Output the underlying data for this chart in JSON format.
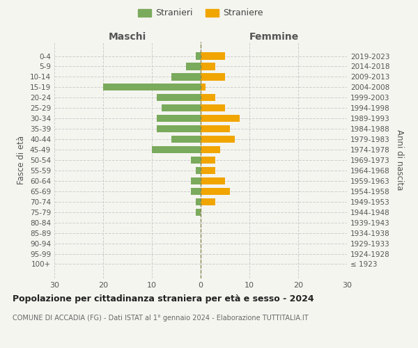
{
  "age_groups": [
    "100+",
    "95-99",
    "90-94",
    "85-89",
    "80-84",
    "75-79",
    "70-74",
    "65-69",
    "60-64",
    "55-59",
    "50-54",
    "45-49",
    "40-44",
    "35-39",
    "30-34",
    "25-29",
    "20-24",
    "15-19",
    "10-14",
    "5-9",
    "0-4"
  ],
  "birth_years": [
    "≤ 1923",
    "1924-1928",
    "1929-1933",
    "1934-1938",
    "1939-1943",
    "1944-1948",
    "1949-1953",
    "1954-1958",
    "1959-1963",
    "1964-1968",
    "1969-1973",
    "1974-1978",
    "1979-1983",
    "1984-1988",
    "1989-1993",
    "1994-1998",
    "1999-2003",
    "2004-2008",
    "2009-2013",
    "2014-2018",
    "2019-2023"
  ],
  "maschi": [
    0,
    0,
    0,
    0,
    0,
    1,
    1,
    2,
    2,
    1,
    2,
    10,
    6,
    9,
    9,
    8,
    9,
    20,
    6,
    3,
    1
  ],
  "femmine": [
    0,
    0,
    0,
    0,
    0,
    0,
    3,
    6,
    5,
    3,
    3,
    4,
    7,
    6,
    8,
    5,
    3,
    1,
    5,
    3,
    5
  ],
  "color_maschi": "#7aaa5c",
  "color_femmine": "#f0a500",
  "background_color": "#f5f5f0",
  "grid_color": "#cccccc",
  "title": "Popolazione per cittadinanza straniera per età e sesso - 2024",
  "subtitle": "COMUNE DI ACCADIA (FG) - Dati ISTAT al 1° gennaio 2024 - Elaborazione TUTTITALIA.IT",
  "xlabel_left": "Maschi",
  "xlabel_right": "Femmine",
  "ylabel_left": "Fasce di età",
  "ylabel_right": "Anni di nascita",
  "xlim": 30,
  "legend_stranieri": "Stranieri",
  "legend_straniere": "Straniere"
}
